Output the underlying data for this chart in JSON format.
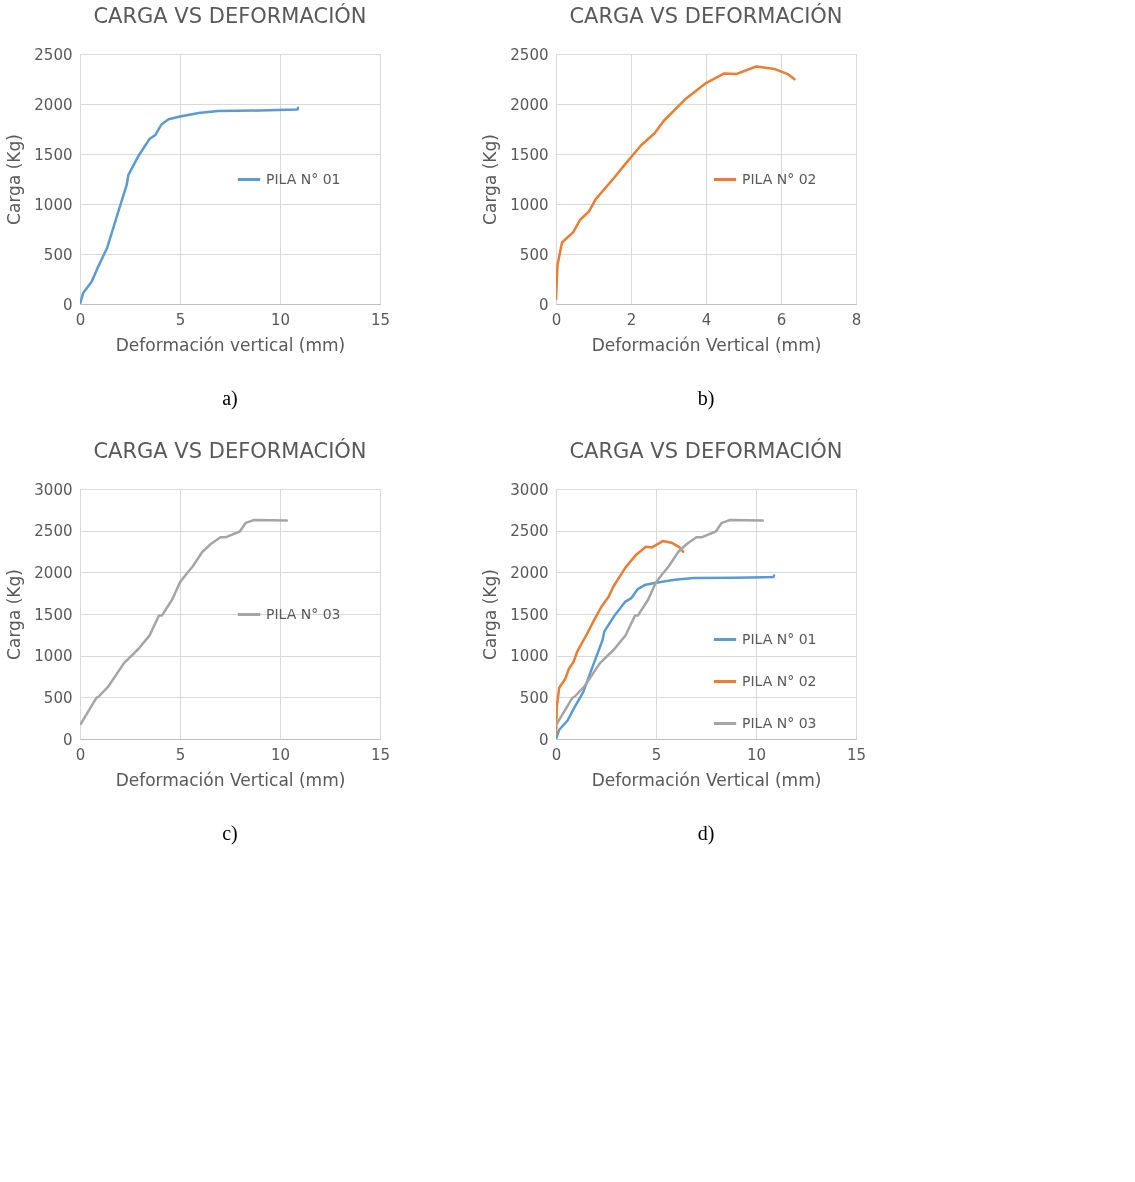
{
  "chart_data": [
    {
      "type": "line",
      "title": "CARGA VS DEFORMACIÓN",
      "xlabel": "Deformación vertical (mm)",
      "ylabel": "Carga (Kg)",
      "xlim": [
        0,
        15
      ],
      "xticks": [
        0,
        5,
        10,
        15
      ],
      "ylim": [
        0,
        2500
      ],
      "yticks": [
        0,
        500,
        1000,
        1500,
        2000,
        2500
      ],
      "grid": true,
      "legend": "right",
      "annotations": [
        "a)"
      ],
      "series": [
        {
          "name": "PILA N° 01",
          "color": "#5b9bd5",
          "x": [
            0,
            0.16,
            0.58,
            0.88,
            1.36,
            1.84,
            2.33,
            2.42,
            2.93,
            3.47,
            3.77,
            4.07,
            4.43,
            5,
            5.94,
            6.9,
            8.95,
            10.88,
            10.9
          ],
          "values": [
            0,
            111,
            222,
            361,
            563,
            875,
            1188,
            1292,
            1483,
            1649,
            1691,
            1795,
            1847,
            1875,
            1910,
            1931,
            1934,
            1944,
            1962
          ]
        }
      ]
    },
    {
      "type": "line",
      "title": "CARGA VS DEFORMACIÓN",
      "xlabel": "Deformación Vertical (mm)",
      "ylabel": "Carga (Kg)",
      "xlim": [
        0,
        8
      ],
      "xticks": [
        0,
        2,
        4,
        6,
        8
      ],
      "ylim": [
        0,
        2500
      ],
      "yticks": [
        0,
        500,
        1000,
        1500,
        2000,
        2500
      ],
      "grid": true,
      "legend": "right",
      "annotations": [
        "b)"
      ],
      "series": [
        {
          "name": "PILA N° 02",
          "color": "#ed7d31",
          "x": [
            0,
            0.04,
            0.16,
            0.46,
            0.64,
            0.88,
            1.06,
            1.54,
            1.84,
            2.27,
            2.63,
            2.87,
            3.47,
            4.01,
            4.49,
            4.8,
            5.34,
            5.82,
            6.18,
            6.36
          ],
          "values": [
            50,
            389,
            615,
            719,
            840,
            927,
            1049,
            1257,
            1396,
            1587,
            1708,
            1830,
            2056,
            2212,
            2306,
            2299,
            2375,
            2351,
            2299,
            2247
          ]
        }
      ]
    },
    {
      "type": "line",
      "title": "CARGA VS DEFORMACIÓN",
      "xlabel": "Deformación Vertical (mm)",
      "ylabel": "Carga (Kg)",
      "xlim": [
        0,
        15
      ],
      "xticks": [
        0,
        5,
        10,
        15
      ],
      "ylim": [
        0,
        3000
      ],
      "yticks": [
        0,
        500,
        1000,
        1500,
        2000,
        2500,
        3000
      ],
      "grid": true,
      "legend": "right",
      "annotations": [
        "c)"
      ],
      "series": [
        {
          "name": "PILA N° 03",
          "color": "#a5a5a5",
          "x": [
            0.04,
            0.82,
            0.94,
            1.42,
            2.2,
            2.93,
            3.47,
            3.95,
            4.1,
            4.61,
            5,
            5.34,
            5.64,
            6.12,
            6.54,
            7.02,
            7.27,
            7.99,
            8.29,
            8.71,
            10.34
          ],
          "values": [
            181,
            493,
            510,
            632,
            910,
            1083,
            1240,
            1483,
            1483,
            1674,
            1882,
            1986,
            2073,
            2247,
            2340,
            2420,
            2420,
            2490,
            2594,
            2628,
            2622
          ]
        }
      ]
    },
    {
      "type": "line",
      "title": "CARGA VS DEFORMACIÓN",
      "xlabel": "Deformación Vertical (mm)",
      "ylabel": "Carga (Kg)",
      "xlim": [
        0,
        15
      ],
      "xticks": [
        0,
        5,
        10,
        15
      ],
      "ylim": [
        0,
        3000
      ],
      "yticks": [
        0,
        500,
        1000,
        1500,
        2000,
        2500,
        3000
      ],
      "grid": true,
      "legend": "bottom right",
      "annotations": [
        "d)"
      ],
      "series": [
        {
          "name": "PILA N° 01",
          "color": "#5b9bd5",
          "x": [
            0,
            0.16,
            0.58,
            0.88,
            1.36,
            1.84,
            2.33,
            2.42,
            2.93,
            3.47,
            3.77,
            4.07,
            4.43,
            5,
            5.94,
            6.9,
            8.95,
            10.88,
            10.9
          ],
          "values": [
            0,
            111,
            222,
            361,
            563,
            875,
            1188,
            1292,
            1483,
            1649,
            1691,
            1795,
            1847,
            1875,
            1910,
            1931,
            1934,
            1944,
            1962
          ]
        },
        {
          "name": "PILA N° 02",
          "color": "#ed7d31",
          "x": [
            0,
            0.04,
            0.16,
            0.46,
            0.64,
            0.88,
            1.06,
            1.54,
            1.84,
            2.27,
            2.63,
            2.87,
            3.47,
            4.01,
            4.49,
            4.8,
            5.34,
            5.82,
            6.18,
            6.36
          ],
          "values": [
            50,
            389,
            615,
            719,
            840,
            927,
            1049,
            1257,
            1396,
            1587,
            1708,
            1830,
            2056,
            2212,
            2306,
            2299,
            2375,
            2351,
            2299,
            2247
          ]
        },
        {
          "name": "PILA N° 03",
          "color": "#a5a5a5",
          "x": [
            0.04,
            0.82,
            0.94,
            1.42,
            2.2,
            2.93,
            3.47,
            3.95,
            4.1,
            4.61,
            5,
            5.34,
            5.64,
            6.12,
            6.54,
            7.02,
            7.27,
            7.99,
            8.29,
            8.71,
            10.34
          ],
          "values": [
            181,
            493,
            510,
            632,
            910,
            1083,
            1240,
            1483,
            1483,
            1674,
            1882,
            1986,
            2073,
            2247,
            2340,
            2420,
            2420,
            2490,
            2594,
            2628,
            2622
          ]
        }
      ]
    }
  ]
}
